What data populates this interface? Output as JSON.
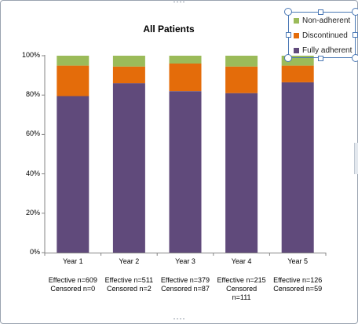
{
  "chart_data": {
    "type": "bar",
    "stacked": true,
    "title": "All Patients",
    "categories": [
      "Year 1",
      "Year 2",
      "Year 3",
      "Year 4",
      "Year 5"
    ],
    "series": [
      {
        "name": "Fully adherent",
        "color": "#604a7b",
        "values": [
          79.5,
          86,
          82,
          81,
          86.5
        ]
      },
      {
        "name": "Discontinued",
        "color": "#e46c0a",
        "values": [
          15.5,
          8.5,
          14,
          13.5,
          8.5
        ]
      },
      {
        "name": "Non-adherent",
        "color": "#9bbb59",
        "values": [
          5,
          5.5,
          4,
          5.5,
          5
        ]
      }
    ],
    "ylim": [
      0,
      100
    ],
    "yticks": [
      "0%",
      "20%",
      "40%",
      "60%",
      "80%",
      "100%"
    ],
    "grid": false,
    "legend_position": "top-right",
    "category_notes": [
      [
        "Effective n=609",
        "Censored n=0"
      ],
      [
        "Effective n=511",
        "Censored n=2"
      ],
      [
        "Effective n=379",
        "Censored n=87"
      ],
      [
        "Effective n=215",
        "Censored",
        "n=111"
      ],
      [
        "Effective n=126",
        "Censored n=59"
      ]
    ]
  },
  "legend": {
    "items": [
      {
        "label": "Non-adherent",
        "color": "#9bbb59"
      },
      {
        "label": "Discontinued",
        "color": "#e46c0a"
      },
      {
        "label": "Fully adherent",
        "color": "#604a7b"
      }
    ]
  }
}
